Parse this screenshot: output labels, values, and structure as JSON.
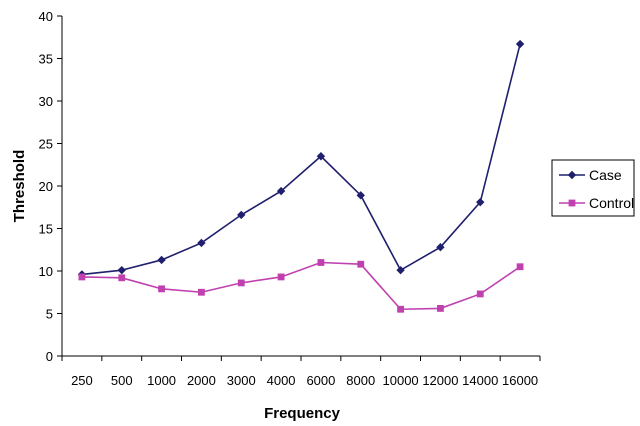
{
  "chart_data": {
    "type": "line",
    "title": "",
    "xlabel": "Frequency",
    "ylabel": "Threshold",
    "categories": [
      "250",
      "500",
      "1000",
      "2000",
      "3000",
      "4000",
      "6000",
      "8000",
      "10000",
      "12000",
      "14000",
      "16000"
    ],
    "ylim": [
      0,
      40
    ],
    "yticks": [
      0,
      5,
      10,
      15,
      20,
      25,
      30,
      35,
      40
    ],
    "grid": false,
    "legend_position": "right",
    "series": [
      {
        "name": "Case",
        "color": "#1f1f6e",
        "marker": "diamond",
        "values": [
          9.6,
          10.1,
          11.3,
          13.3,
          16.6,
          19.4,
          23.5,
          18.9,
          10.1,
          12.8,
          18.1,
          36.7
        ]
      },
      {
        "name": "Control",
        "color": "#c040b0",
        "marker": "square",
        "values": [
          9.3,
          9.2,
          7.9,
          7.5,
          8.6,
          9.3,
          11.0,
          10.8,
          5.5,
          5.6,
          7.3,
          10.5
        ]
      }
    ]
  }
}
